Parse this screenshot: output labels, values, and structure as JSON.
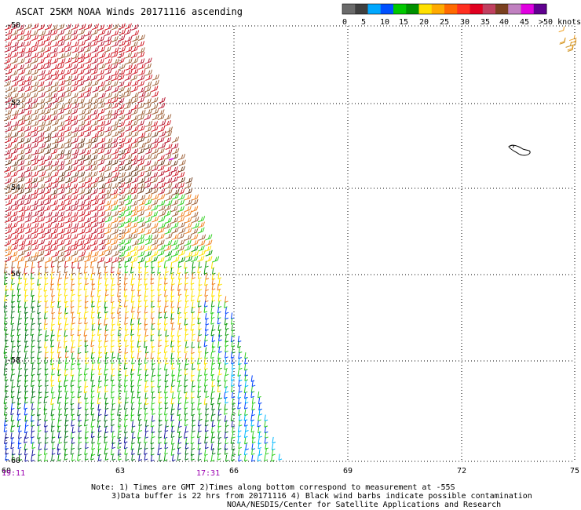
{
  "title": "ASCAT 25KM NOAA Winds 20171116 ascending",
  "legend": {
    "colors": [
      "#6a6a6a",
      "#3f3f3f",
      "#00a8ff",
      "#0050ff",
      "#00c800",
      "#009000",
      "#ffe000",
      "#ffaa00",
      "#ff6a00",
      "#ff3020",
      "#e00020",
      "#c04060",
      "#7a4020",
      "#c080c0",
      "#e000e0",
      "#600090"
    ],
    "labels": [
      "0",
      "5",
      "10",
      "15",
      "20",
      "25",
      "30",
      "35",
      "40",
      "45",
      ">50 knots"
    ]
  },
  "map": {
    "lat_labels": [
      "-50",
      "-52",
      "-54",
      "-56",
      "-58",
      "-60"
    ],
    "lon_labels": [
      "60",
      "63",
      "66",
      "69",
      "72",
      "75"
    ],
    "time_labels": [
      "19:11",
      "17:31"
    ]
  },
  "notes": [
    "Note: 1) Times are GMT 2)Times along bottom correspond to measurement at -55S",
    "3)Data buffer is 22 hrs from 20171116 4) Black wind barbs indicate possible contamination",
    "NOAA/NESDIS/Center for Satellite Applications and Research"
  ]
}
